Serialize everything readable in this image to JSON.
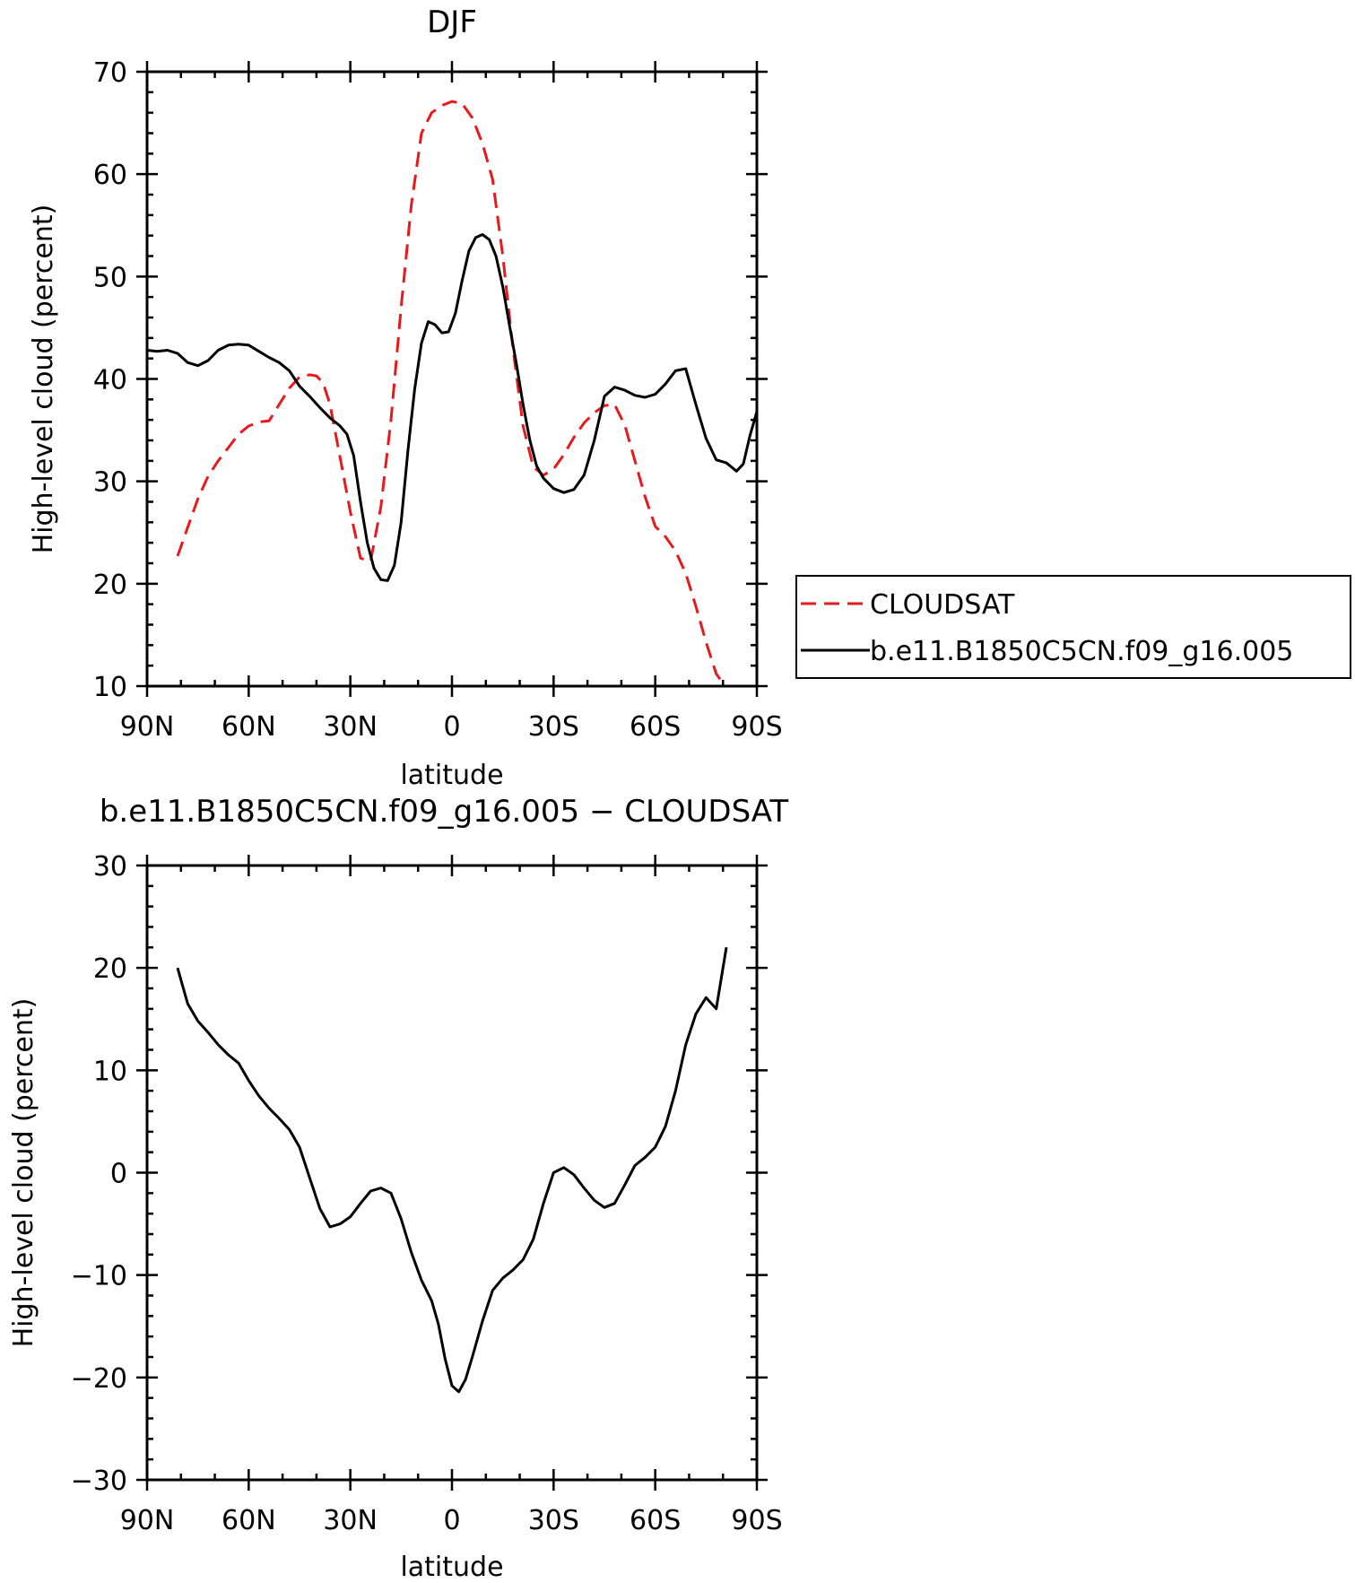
{
  "chart_data": [
    {
      "type": "line",
      "title": "DJF",
      "xlabel": "latitude",
      "ylabel": "High-level cloud (percent)",
      "xlim": [
        90,
        -90
      ],
      "ylim": [
        10,
        70
      ],
      "xticks": [
        90,
        60,
        30,
        0,
        -30,
        -60,
        -90
      ],
      "xtick_labels": [
        "90N",
        "60N",
        "30N",
        "0",
        "30S",
        "60S",
        "90S"
      ],
      "yticks": [
        10,
        20,
        30,
        40,
        50,
        60,
        70
      ],
      "ytick_labels": [
        "10",
        "20",
        "30",
        "40",
        "50",
        "60",
        "70"
      ],
      "legend": "right",
      "series": [
        {
          "name": "CLOUDSAT",
          "color": "#e8191c",
          "dash": "dashed",
          "x": [
            81,
            78,
            75,
            72,
            69,
            66,
            63,
            60,
            57,
            54,
            51,
            48,
            45,
            42,
            40,
            38,
            36,
            33,
            30,
            27,
            24,
            21,
            18,
            15,
            12,
            9,
            6,
            3,
            0,
            -3,
            -6,
            -9,
            -12,
            -15,
            -18,
            -21,
            -24,
            -27,
            -30,
            -33,
            -36,
            -39,
            -42,
            -45,
            -48,
            -51,
            -54,
            -57,
            -60,
            -63,
            -66,
            -69,
            -72,
            -75,
            -78,
            -81
          ],
          "y": [
            22.7,
            25.5,
            28.3,
            30.5,
            32,
            33.3,
            34.6,
            35.4,
            35.8,
            35.9,
            37.5,
            39.1,
            40.2,
            40.4,
            40.3,
            39.6,
            37.5,
            32.3,
            27,
            22.5,
            22.2,
            27.5,
            36,
            47,
            57,
            64,
            66,
            66.7,
            67.1,
            66.9,
            65.5,
            63,
            59.5,
            52,
            43,
            35.4,
            31.4,
            30.6,
            31.2,
            32.6,
            34.3,
            35.7,
            36.7,
            37.4,
            37.5,
            35.5,
            32,
            28.5,
            25.6,
            24.6,
            23.2,
            21,
            17.8,
            14.3,
            11.2,
            9.8
          ]
        },
        {
          "name": "b.e11.B1850C5CN.f09_g16.005",
          "color": "#000000",
          "dash": "solid",
          "x": [
            90,
            87,
            84,
            81,
            78,
            75,
            72,
            69,
            66,
            63,
            60,
            57,
            54,
            51,
            48,
            45,
            42,
            39,
            36,
            33,
            31,
            29,
            27,
            25,
            23,
            21,
            19,
            17,
            15,
            13,
            11,
            9,
            7,
            5,
            3,
            1,
            -1,
            -3,
            -5,
            -7,
            -9,
            -11,
            -13,
            -15,
            -17,
            -19,
            -21,
            -23,
            -25,
            -27,
            -30,
            -33,
            -36,
            -39,
            -42,
            -45,
            -48,
            -51,
            -54,
            -57,
            -60,
            -63,
            -66,
            -69,
            -72,
            -75,
            -78,
            -81,
            -84,
            -86,
            -88,
            -90
          ],
          "y": [
            42.8,
            42.7,
            42.8,
            42.5,
            41.6,
            41.3,
            41.8,
            42.8,
            43.3,
            43.4,
            43.3,
            42.7,
            42.1,
            41.6,
            40.8,
            39.3,
            38.3,
            37.2,
            36.2,
            35.4,
            34.6,
            32.5,
            28,
            24,
            21.5,
            20.4,
            20.3,
            21.8,
            26,
            33,
            39,
            43.5,
            45.6,
            45.3,
            44.5,
            44.6,
            46.4,
            49.6,
            52.5,
            53.8,
            54.1,
            53.6,
            52,
            49,
            45.2,
            41.5,
            37.5,
            34,
            31.5,
            30.3,
            29.3,
            28.9,
            29.2,
            30.6,
            34,
            38.3,
            39.2,
            38.9,
            38.4,
            38.2,
            38.5,
            39.5,
            40.8,
            41,
            37.5,
            34.2,
            32.1,
            31.8,
            31,
            31.7,
            34.5,
            36.8
          ]
        }
      ]
    },
    {
      "type": "line",
      "title": "b.e11.B1850C5CN.f09_g16.005 − CLOUDSAT",
      "xlabel": "latitude",
      "ylabel": "High-level cloud (percent)",
      "xlim": [
        90,
        -90
      ],
      "ylim": [
        -30,
        30
      ],
      "xticks": [
        90,
        60,
        30,
        0,
        -30,
        -60,
        -90
      ],
      "xtick_labels": [
        "90N",
        "60N",
        "30N",
        "0",
        "30S",
        "60S",
        "90S"
      ],
      "yticks": [
        -30,
        -20,
        -10,
        0,
        10,
        20,
        30
      ],
      "ytick_labels": [
        "−30",
        "−20",
        "−10",
        "0",
        "10",
        "20",
        "30"
      ],
      "series": [
        {
          "color": "#000000",
          "dash": "solid",
          "x": [
            81,
            78,
            75,
            72,
            69,
            66,
            63,
            60,
            57,
            54,
            51,
            48,
            45,
            42,
            39,
            36,
            33,
            30,
            27,
            24,
            21,
            18,
            15,
            12,
            9,
            6,
            4,
            2,
            0,
            -2,
            -4,
            -6,
            -9,
            -12,
            -15,
            -18,
            -21,
            -24,
            -27,
            -30,
            -33,
            -36,
            -39,
            -42,
            -45,
            -48,
            -51,
            -54,
            -57,
            -60,
            -63,
            -66,
            -69,
            -72,
            -75,
            -78,
            -81
          ],
          "y": [
            20,
            16.5,
            14.8,
            13.7,
            12.5,
            11.5,
            10.7,
            9,
            7.5,
            6.3,
            5.3,
            4.2,
            2.5,
            -0.5,
            -3.5,
            -5.3,
            -5,
            -4.3,
            -3,
            -1.8,
            -1.5,
            -2,
            -4.5,
            -7.8,
            -10.5,
            -12.5,
            -14.8,
            -18.2,
            -20.8,
            -21.4,
            -20.2,
            -18,
            -14.5,
            -11.5,
            -10.3,
            -9.5,
            -8.5,
            -6.5,
            -3,
            0,
            0.5,
            -0.2,
            -1.5,
            -2.7,
            -3.4,
            -3,
            -1.2,
            0.7,
            1.5,
            2.5,
            4.5,
            8,
            12.5,
            15.5,
            17.1,
            16,
            22
          ]
        }
      ]
    }
  ]
}
